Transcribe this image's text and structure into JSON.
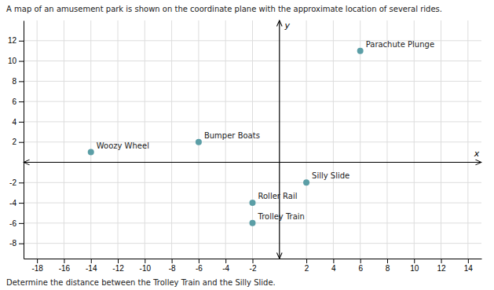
{
  "chart_data": {
    "type": "scatter",
    "title": "A map of an amusement park is shown on the coordinate plane with the approximate location of several rides.",
    "subtitle": "Determine the distance between the Trolley Train and the Silly Slide.",
    "x_label": "x",
    "y_label": "y",
    "x": [
      6,
      -6,
      -14,
      2,
      -2,
      -2
    ],
    "values": [
      11,
      2,
      1,
      -2,
      -4,
      -6
    ],
    "labels": [
      "Parachute Plunge",
      "Bumper Boats",
      "Woozy Wheel",
      "Silly Slide",
      "Roller Rail",
      "Trolley Train"
    ],
    "color": "#5b9ea6",
    "xlim": [
      -19,
      15
    ],
    "ylim": [
      -9.5,
      14
    ],
    "xticks": [
      -18,
      -16,
      -14,
      -12,
      -10,
      -8,
      -6,
      -4,
      -2,
      2,
      4,
      6,
      8,
      10,
      12,
      14
    ],
    "yticks": [
      -8,
      -6,
      -4,
      -2,
      2,
      4,
      6,
      8,
      10,
      12
    ],
    "grid": true
  }
}
